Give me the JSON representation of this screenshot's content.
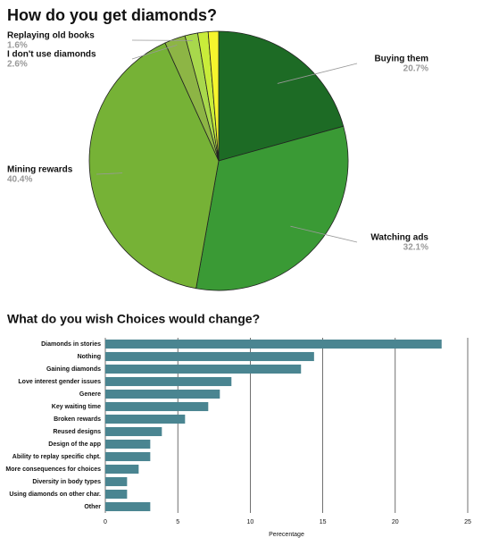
{
  "chart_data": [
    {
      "type": "pie",
      "title": "How do you get diamonds?",
      "categories": [
        "Buying them",
        "Watching ads",
        "Mining rewards",
        "I don't use diamonds",
        "Replaying old books",
        null,
        null
      ],
      "values": [
        20.7,
        32.1,
        40.4,
        2.6,
        1.6,
        1.3,
        1.3
      ],
      "value_labels": [
        "20.7%",
        "32.1%",
        "40.4%",
        "2.6%",
        "1.6%",
        null,
        null
      ],
      "colors": [
        "#1d6b25",
        "#3a9a35",
        "#76b236",
        "#8db545",
        "#a8d84c",
        "#c9ec3a",
        "#f6f52d"
      ]
    },
    {
      "type": "hbar",
      "title": "What do you wish Choices would change?",
      "categories": [
        "Diamonds in stories",
        "Nothing",
        "Gaining diamonds",
        "Love interest gender issues",
        "Genere",
        "Key waiting time",
        "Broken rewards",
        "Reused designs",
        "Design of the app",
        "Ability to replay specific chpt.",
        "More consequences for choices",
        "Diversity in body types",
        "Using diamonds on other char.",
        "Other"
      ],
      "values": [
        23.2,
        14.4,
        13.5,
        8.7,
        7.9,
        7.1,
        5.5,
        3.9,
        3.1,
        3.1,
        2.3,
        1.5,
        1.5,
        3.1
      ],
      "color": "#4a8591",
      "xlabel": "Perecentage",
      "xlim": [
        0,
        25
      ],
      "xticks": [
        0,
        5,
        10,
        15,
        20,
        25
      ],
      "grid": true
    }
  ]
}
